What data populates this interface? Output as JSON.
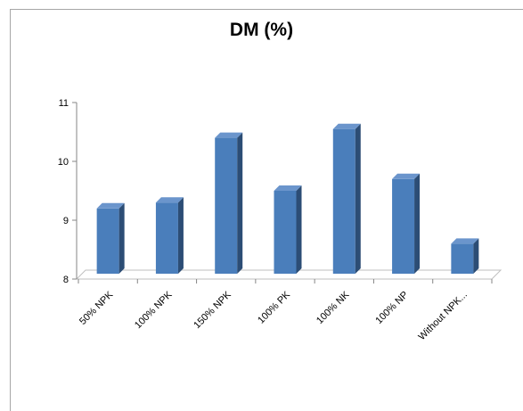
{
  "chart_data": {
    "type": "bar",
    "title": "DM (%)",
    "xlabel": "",
    "ylabel": "",
    "categories": [
      "50% NPK",
      "100% NPK",
      "150% NPK",
      "100% PK",
      "100% NK",
      "100% NP",
      "Without NPK..."
    ],
    "values": [
      9.2,
      9.3,
      10.4,
      9.5,
      10.55,
      9.7,
      8.6
    ],
    "ylim": [
      8,
      11
    ],
    "yticks": [
      8,
      9,
      10,
      11
    ],
    "grid": false,
    "legend": "none",
    "colors": {
      "front": "#4a7ebb",
      "side": "#2c4d75",
      "top": "#6b95cc",
      "floor": "#bfbfbf",
      "axis": "#868686"
    }
  }
}
